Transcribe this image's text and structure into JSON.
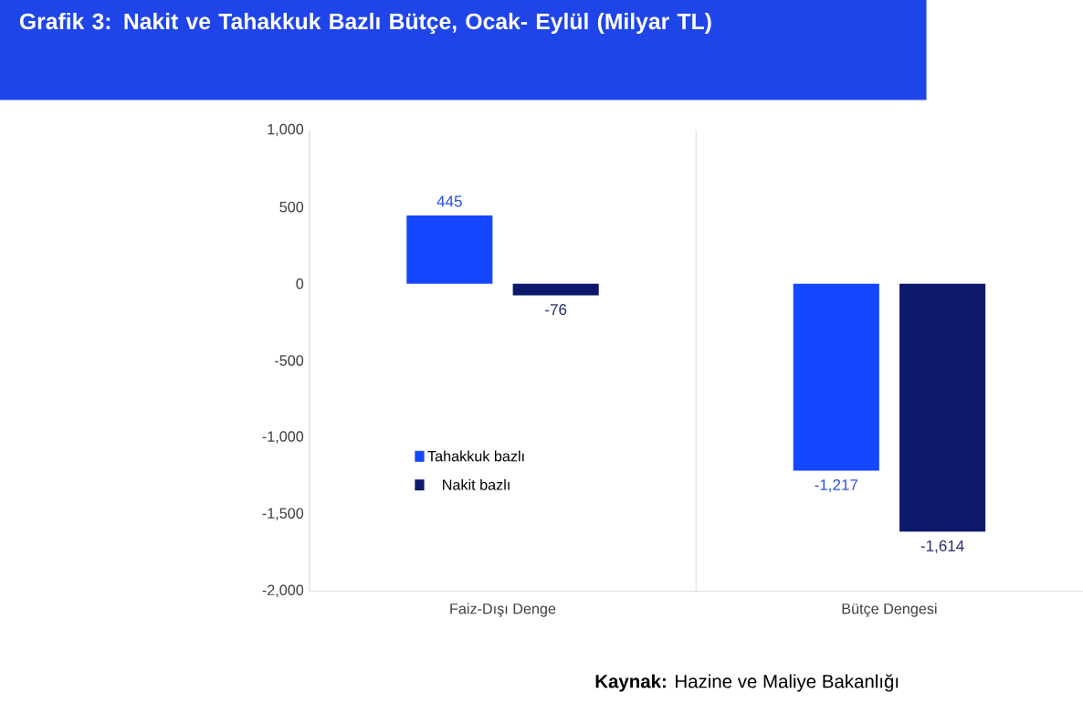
{
  "chart_data": {
    "type": "bar",
    "title": "Grafik 3: Nakit ve Tahakkuk Bazlı Bütçe, Ocak- Eylül (Milyar TL)",
    "categories": [
      "Faiz-Dışı Denge",
      "Bütçe Dengesi"
    ],
    "series": [
      {
        "name": "Tahakkuk bazlı",
        "color": "#1447ff",
        "values": [
          445,
          -1217
        ],
        "value_labels": [
          "445",
          "-1,217"
        ]
      },
      {
        "name": "Nakit bazlı",
        "color": "#0d1a6b",
        "values": [
          -76,
          -1614
        ],
        "value_labels": [
          "-76",
          "-1,614"
        ]
      }
    ],
    "ylim": [
      -2000,
      1000
    ],
    "yticks": [
      {
        "value": 1000,
        "label": "1,000"
      },
      500,
      0,
      -500,
      {
        "value": -1000,
        "label": "-1,000"
      },
      {
        "value": -1500,
        "label": "-1,500"
      },
      {
        "value": -2000,
        "label": "-2,000"
      }
    ],
    "legend": "left",
    "annotations": [
      "**Kaynak:** Hazine ve Maliye Bakanlığı"
    ]
  }
}
